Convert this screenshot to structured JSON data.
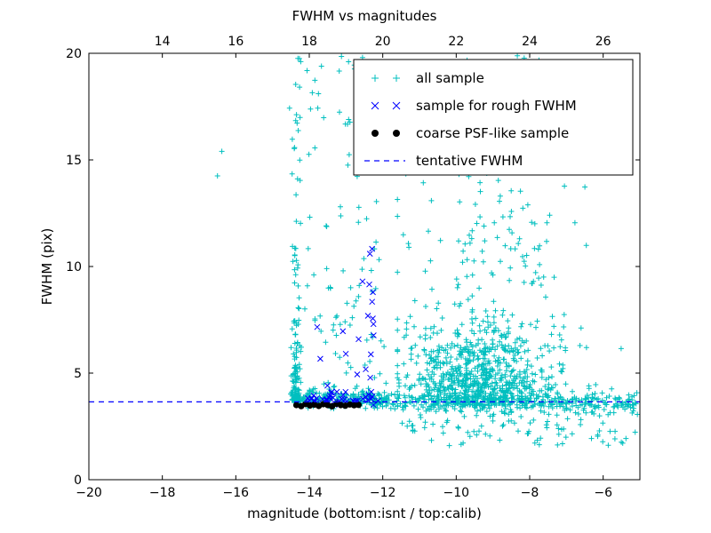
{
  "chart_data": {
    "type": "scatter",
    "title": "FWHM vs magnitudes",
    "xlabel": "magnitude (bottom:isnt / top:calib)",
    "ylabel": "FWHM (pix)",
    "x_range": [
      -20,
      -5
    ],
    "y_range": [
      0,
      20
    ],
    "seed": 42,
    "x_ticks_bottom": {
      "values": [
        -20,
        -18,
        -16,
        -14,
        -12,
        -10,
        -8,
        -6
      ],
      "labels": [
        "−20",
        "−18",
        "−16",
        "−14",
        "−12",
        "−10",
        "−8",
        "−6"
      ]
    },
    "x_ticks_top": {
      "offset": 32,
      "values": [
        14,
        16,
        18,
        20,
        22,
        24,
        26
      ],
      "labels": [
        "14",
        "16",
        "18",
        "20",
        "22",
        "24",
        "26"
      ]
    },
    "y_ticks": {
      "values": [
        0,
        5,
        10,
        15,
        20
      ],
      "labels": [
        "0",
        "5",
        "10",
        "15",
        "20"
      ]
    },
    "tentative_fwhm_value": 3.65,
    "colors": {
      "cyan": "#00bfbf",
      "blue": "#0000ff",
      "black": "#000000"
    },
    "series": [
      {
        "id": "all-sample",
        "name": "all sample",
        "marker": "plus",
        "color": "#00bfbf",
        "points": [
          [
            -16.5,
            14.25
          ],
          [
            -16.38,
            15.4
          ]
        ],
        "clusters": [
          {
            "n": 70,
            "x": {
              "dist": "normal",
              "mean": -14.38,
              "sd": 0.06
            },
            "y": {
              "dist": "halfnormal",
              "base": 3.5,
              "sd": 1.2,
              "clip_max": 20
            }
          },
          {
            "n": 45,
            "x": {
              "dist": "normal",
              "mean": -14.33,
              "sd": 0.09
            },
            "y": {
              "dist": "powerlaw",
              "min": 6,
              "max": 20,
              "exp": 1.8
            }
          },
          {
            "n": 120,
            "x": {
              "dist": "uniform",
              "min": -14.5,
              "max": -11.9
            },
            "y": {
              "dist": "powerlaw",
              "min": 4,
              "max": 20,
              "exp": 2.2
            }
          },
          {
            "n": 220,
            "x": {
              "dist": "uniform",
              "min": -14.5,
              "max": -11.9
            },
            "y": {
              "dist": "normal",
              "mean": 3.75,
              "sd": 0.18
            }
          },
          {
            "n": 750,
            "x": {
              "dist": "normal",
              "mean": -9.4,
              "sd": 1.05,
              "clip_min": -11.6,
              "clip_max": -5.1
            },
            "y": {
              "dist": "halfnormal",
              "base": 3.45,
              "sd": 1.7,
              "clip_max": 20
            }
          },
          {
            "n": 180,
            "x": {
              "dist": "normal",
              "mean": -9.2,
              "sd": 1.25,
              "clip_min": -11.6,
              "clip_max": -5.1
            },
            "y": {
              "dist": "powerlaw",
              "min": 6,
              "max": 15,
              "exp": 1.6
            }
          },
          {
            "n": 320,
            "x": {
              "dist": "uniform",
              "min": -11.9,
              "max": -5.05
            },
            "y": {
              "dist": "normal",
              "mean": 3.6,
              "sd": 0.22
            }
          },
          {
            "n": 90,
            "x": {
              "dist": "uniform",
              "min": -11.5,
              "max": -5.05
            },
            "y": {
              "dist": "uniform",
              "min": 1.6,
              "max": 3.2
            }
          },
          {
            "n": 35,
            "x": {
              "dist": "uniform",
              "min": -13.2,
              "max": -6.8
            },
            "y": {
              "dist": "uniform",
              "min": 14,
              "max": 20
            }
          }
        ]
      },
      {
        "id": "rough-fwhm",
        "name": "sample for rough FWHM",
        "marker": "x",
        "color": "#0000ff",
        "points": [
          [
            -12.35,
            10.6
          ],
          [
            -12.55,
            9.3
          ]
        ],
        "clusters": [
          {
            "n": 40,
            "x": {
              "dist": "uniform",
              "min": -14.05,
              "max": -12.1
            },
            "y": {
              "dist": "normal",
              "mean": 3.8,
              "sd": 0.15
            }
          },
          {
            "n": 10,
            "x": {
              "dist": "normal",
              "mean": -12.32,
              "sd": 0.07
            },
            "y": {
              "dist": "uniform",
              "min": 4.5,
              "max": 11
            }
          },
          {
            "n": 10,
            "x": {
              "dist": "uniform",
              "min": -13.9,
              "max": -12.3
            },
            "y": {
              "dist": "powerlaw",
              "min": 4,
              "max": 9,
              "exp": 1.5
            }
          }
        ]
      },
      {
        "id": "psf-like",
        "name": "coarse PSF-like sample",
        "marker": "dot",
        "color": "#000000",
        "points": [
          [
            -14.35,
            3.5
          ],
          [
            -14.22,
            3.45
          ],
          [
            -14.1,
            3.55
          ],
          [
            -13.98,
            3.48
          ],
          [
            -13.86,
            3.52
          ],
          [
            -13.74,
            3.46
          ],
          [
            -13.62,
            3.54
          ],
          [
            -13.5,
            3.5
          ],
          [
            -13.38,
            3.44
          ],
          [
            -13.26,
            3.56
          ],
          [
            -13.14,
            3.5
          ],
          [
            -13.02,
            3.47
          ],
          [
            -12.9,
            3.53
          ],
          [
            -12.78,
            3.49
          ],
          [
            -12.66,
            3.51
          ]
        ]
      },
      {
        "id": "tentative-fwhm",
        "name": "tentative FWHM",
        "marker": "dashed-line",
        "color": "#0000ff",
        "y": 3.65
      }
    ]
  }
}
